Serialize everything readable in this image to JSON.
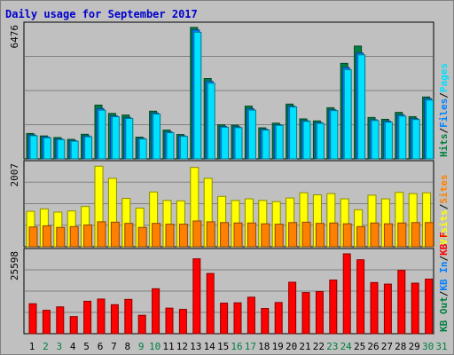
{
  "title": "Daily usage for September 2017",
  "chart_data": [
    {
      "type": "bar",
      "panel": "top",
      "max_label": "6476",
      "ymax": 6476,
      "x": [
        "1",
        "2",
        "3",
        "4",
        "5",
        "6",
        "7",
        "8",
        "9",
        "10",
        "11",
        "12",
        "13",
        "14",
        "15",
        "16",
        "17",
        "18",
        "19",
        "20",
        "21",
        "22",
        "23",
        "24",
        "25",
        "26",
        "27",
        "28",
        "29",
        "30",
        "31"
      ],
      "series": [
        {
          "name": "Hits",
          "color": "#008040",
          "values": [
            1250,
            1130,
            1050,
            960,
            1210,
            2650,
            2240,
            2160,
            1070,
            2350,
            1420,
            1200,
            6480,
            3960,
            1680,
            1660,
            2600,
            1530,
            1760,
            2700,
            1970,
            1870,
            2520,
            4710,
            5560,
            2040,
            1950,
            2290,
            2080,
            3050,
            0
          ]
        },
        {
          "name": "Files",
          "color": "#0080ff",
          "values": [
            1180,
            1080,
            980,
            900,
            1130,
            2480,
            2120,
            2030,
            1010,
            2260,
            1330,
            1130,
            6360,
            3820,
            1600,
            1580,
            2470,
            1460,
            1680,
            2600,
            1880,
            1790,
            2420,
            4500,
            5220,
            1930,
            1860,
            2170,
            1990,
            2970,
            0
          ]
        },
        {
          "name": "Pages",
          "color": "#00e0ff",
          "values": [
            1140,
            1040,
            950,
            870,
            1090,
            2400,
            2080,
            1990,
            980,
            2210,
            1290,
            1110,
            6240,
            3730,
            1560,
            1540,
            2400,
            1420,
            1650,
            2560,
            1850,
            1750,
            2380,
            4400,
            5130,
            1890,
            1810,
            2110,
            1940,
            2900,
            0
          ]
        }
      ]
    },
    {
      "type": "bar",
      "panel": "middle",
      "max_label": "2007",
      "ymax": 2007,
      "x": [
        "1",
        "2",
        "3",
        "4",
        "5",
        "6",
        "7",
        "8",
        "9",
        "10",
        "11",
        "12",
        "13",
        "14",
        "15",
        "16",
        "17",
        "18",
        "19",
        "20",
        "21",
        "22",
        "23",
        "24",
        "25",
        "26",
        "27",
        "28",
        "29",
        "30",
        "31"
      ],
      "series": [
        {
          "name": "Visits",
          "color": "#ffff00",
          "values": [
            880,
            940,
            860,
            890,
            1000,
            2000,
            1700,
            1200,
            960,
            1360,
            1150,
            1140,
            1970,
            1700,
            1250,
            1150,
            1190,
            1150,
            1120,
            1210,
            1340,
            1290,
            1320,
            1190,
            920,
            1280,
            1190,
            1350,
            1320,
            1340,
            0
          ]
        },
        {
          "name": "Sites",
          "color": "#ff8000",
          "values": [
            490,
            520,
            480,
            500,
            540,
            620,
            610,
            580,
            480,
            580,
            560,
            560,
            640,
            620,
            600,
            590,
            590,
            570,
            560,
            600,
            610,
            580,
            590,
            570,
            500,
            590,
            570,
            590,
            600,
            600,
            0
          ]
        }
      ]
    },
    {
      "type": "bar",
      "panel": "bottom",
      "max_label": "25598",
      "ymax": 25598,
      "x": [
        "1",
        "2",
        "3",
        "4",
        "5",
        "6",
        "7",
        "8",
        "9",
        "10",
        "11",
        "12",
        "13",
        "14",
        "15",
        "16",
        "17",
        "18",
        "19",
        "20",
        "21",
        "22",
        "23",
        "24",
        "25",
        "26",
        "27",
        "28",
        "29",
        "30",
        "31"
      ],
      "series": [
        {
          "name": "KBytes",
          "color": "#ff0000",
          "values": [
            9600,
            7500,
            8600,
            5500,
            10400,
            11100,
            9300,
            11000,
            5900,
            14400,
            8200,
            7800,
            24000,
            19300,
            9800,
            9900,
            11700,
            8100,
            10000,
            16500,
            13200,
            13500,
            17200,
            25600,
            23700,
            16400,
            15900,
            20300,
            16200,
            17500,
            0
          ]
        }
      ]
    }
  ],
  "legend_top": [
    {
      "text": "Hits",
      "color": "#008040"
    },
    {
      "text": "Files",
      "color": "#0080ff"
    },
    {
      "text": "Pages",
      "color": "#00e0ff"
    }
  ],
  "legend_middle": [
    {
      "text": "Visits",
      "color": "#ffff00"
    },
    {
      "text": "Sites",
      "color": "#ff8000"
    }
  ],
  "legend_bottom": [
    {
      "text": "KB Out",
      "color": "#008040"
    },
    {
      "text": "KB In",
      "color": "#0080ff"
    },
    {
      "text": "KB F",
      "color": "#ff0000"
    }
  ],
  "legend_sep": "/",
  "legend_sep_color": "#000000",
  "day_labels": [
    "1",
    "2",
    "3",
    "4",
    "5",
    "6",
    "7",
    "8",
    "9",
    "10",
    "11",
    "12",
    "13",
    "14",
    "15",
    "16",
    "17",
    "18",
    "19",
    "20",
    "21",
    "22",
    "23",
    "24",
    "25",
    "26",
    "27",
    "28",
    "29",
    "30",
    "31"
  ],
  "weekend_days": [
    2,
    3,
    9,
    10,
    16,
    17,
    23,
    24,
    30,
    31
  ],
  "weekday_color": "#000000",
  "weekend_color": "#008040"
}
